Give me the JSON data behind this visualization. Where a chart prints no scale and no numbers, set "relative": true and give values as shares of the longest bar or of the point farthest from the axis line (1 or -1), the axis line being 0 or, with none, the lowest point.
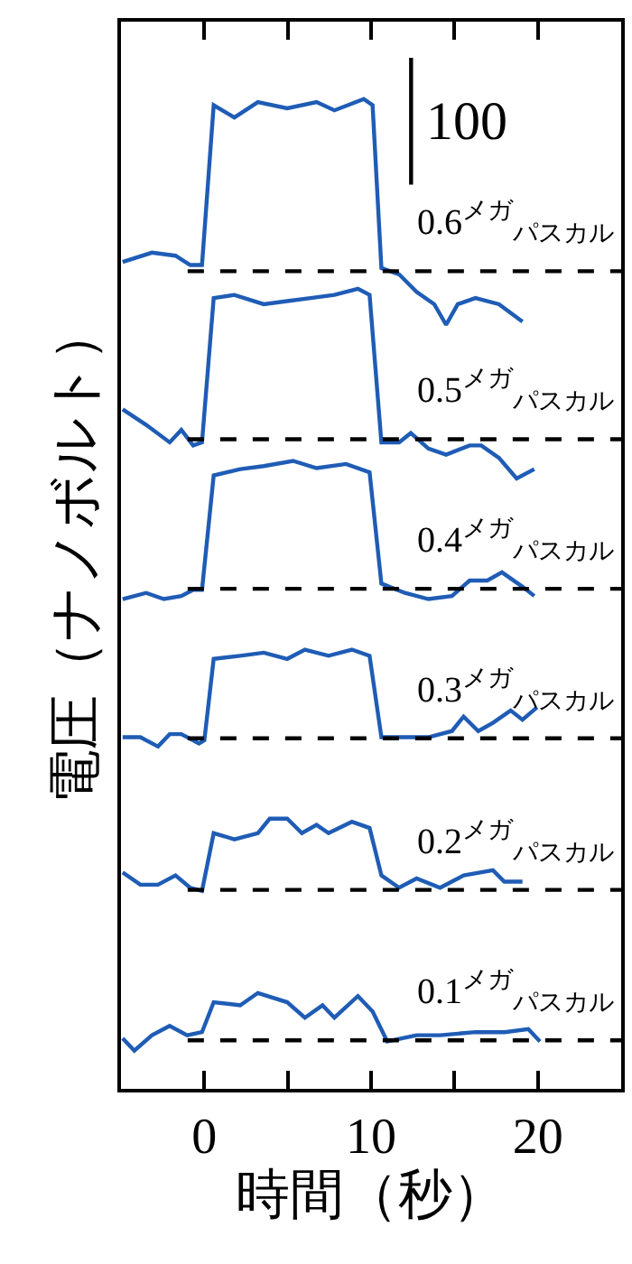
{
  "chart_data": {
    "type": "line",
    "relative": true,
    "xlabel": "時間（秒）",
    "ylabel": "電圧（ナノボルト）",
    "xlim": [
      -5,
      25
    ],
    "xticks": [
      0,
      {
        "value": 5,
        "label": null
      },
      10,
      {
        "value": 15,
        "label": null
      },
      20
    ],
    "legend": "top right",
    "marker": "none",
    "line_style": "solid",
    "series": [
      {
        "color": "#1f5cb5",
        "x": [
          -4.9,
          -3.14,
          -1.73,
          -0.85,
          -0.14,
          0.56,
          1.8,
          3.21,
          4.97,
          6.73,
          7.8,
          9.56,
          10.09,
          10.62,
          11.68,
          12.73,
          13.79,
          14.5,
          15.2,
          16.26,
          17.67,
          19.08
        ],
        "values": [
          0.802,
          0.811,
          0.808,
          0.799,
          0.799,
          0.954,
          0.942,
          0.957,
          0.951,
          0.957,
          0.949,
          0.96,
          0.954,
          0.796,
          0.79,
          0.773,
          0.761,
          0.741,
          0.761,
          0.767,
          0.761,
          0.744
        ]
      },
      {
        "color": "#1f5cb5",
        "x": [
          -4.9,
          -3.49,
          -2.08,
          -1.38,
          -0.67,
          -0.14,
          0.56,
          1.8,
          3.56,
          4.97,
          6.38,
          7.8,
          9.21,
          9.91,
          10.62,
          11.68,
          12.38,
          13.44,
          14.5,
          15.91,
          16.61,
          17.67,
          18.73,
          19.79
        ],
        "values": [
          0.659,
          0.644,
          0.627,
          0.639,
          0.624,
          0.627,
          0.767,
          0.77,
          0.761,
          0.764,
          0.767,
          0.77,
          0.776,
          0.77,
          0.627,
          0.627,
          0.636,
          0.621,
          0.615,
          0.624,
          0.624,
          0.612,
          0.592,
          0.601
        ]
      },
      {
        "color": "#1f5cb5",
        "x": [
          -4.9,
          -3.49,
          -2.43,
          -1.38,
          -0.67,
          -0.14,
          0.56,
          2.15,
          3.56,
          5.32,
          6.73,
          8.5,
          9.91,
          10.62,
          12.03,
          13.44,
          14.85,
          15.91,
          16.97,
          17.85,
          19.08,
          19.79
        ],
        "values": [
          0.475,
          0.481,
          0.475,
          0.478,
          0.484,
          0.484,
          0.595,
          0.601,
          0.604,
          0.609,
          0.602,
          0.606,
          0.598,
          0.49,
          0.481,
          0.475,
          0.478,
          0.493,
          0.493,
          0.501,
          0.487,
          0.478
        ]
      },
      {
        "color": "#1f5cb5",
        "x": [
          -4.9,
          -3.84,
          -2.78,
          -2.08,
          -1.38,
          -0.32,
          0.0,
          0.56,
          2.15,
          3.56,
          4.97,
          6.03,
          7.45,
          8.85,
          9.91,
          10.62,
          12.03,
          13.44,
          14.85,
          15.55,
          16.43,
          17.31,
          18.37,
          19.08,
          19.96
        ],
        "values": [
          0.341,
          0.341,
          0.332,
          0.344,
          0.344,
          0.335,
          0.338,
          0.417,
          0.42,
          0.423,
          0.417,
          0.426,
          0.42,
          0.426,
          0.42,
          0.341,
          0.341,
          0.341,
          0.347,
          0.361,
          0.347,
          0.355,
          0.367,
          0.358,
          0.37
        ]
      },
      {
        "color": "#1f5cb5",
        "x": [
          -4.9,
          -3.84,
          -2.78,
          -1.73,
          -0.85,
          -0.14,
          0.56,
          1.8,
          3.21,
          3.92,
          4.97,
          5.85,
          6.73,
          7.45,
          8.85,
          9.91,
          10.62,
          11.68,
          12.73,
          14.14,
          15.55,
          17.31,
          17.99,
          19.08
        ],
        "values": [
          0.21,
          0.198,
          0.198,
          0.207,
          0.195,
          0.192,
          0.248,
          0.242,
          0.248,
          0.262,
          0.262,
          0.248,
          0.256,
          0.248,
          0.259,
          0.253,
          0.207,
          0.195,
          0.204,
          0.195,
          0.207,
          0.212,
          0.201,
          0.201
        ]
      },
      {
        "color": "#1f5cb5",
        "x": [
          -4.9,
          -4.2,
          -3.14,
          -2.08,
          -1.03,
          -0.14,
          0.56,
          2.15,
          3.21,
          4.97,
          6.03,
          7.09,
          7.8,
          9.21,
          10.09,
          10.97,
          12.73,
          14.14,
          16.26,
          18.02,
          19.43,
          20.13
        ],
        "values": [
          0.049,
          0.037,
          0.052,
          0.061,
          0.052,
          0.055,
          0.084,
          0.081,
          0.093,
          0.084,
          0.069,
          0.081,
          0.069,
          0.09,
          0.075,
          0.046,
          0.052,
          0.052,
          0.055,
          0.055,
          0.058,
          0.046
        ]
      },
      {
        "color": "#000000",
        "line_style": "dashed",
        "x": [
          -1,
          25
        ],
        "values": [
          0.793,
          0.793
        ],
        "name": "0.6$^{メガ}$$_{パスカル}$"
      },
      {
        "color": "#000000",
        "line_style": "dashed",
        "x": [
          -1,
          25
        ],
        "values": [
          0.63,
          0.63
        ],
        "name": "0.5$^{メガ}$$_{パスカル}$"
      },
      {
        "color": "#000000",
        "line_style": "dashed",
        "x": [
          -1,
          25
        ],
        "values": [
          0.485,
          0.485
        ],
        "name": "0.4$^{メガ}$$_{パスカル}$"
      },
      {
        "color": "#000000",
        "line_style": "dashed",
        "x": [
          -1,
          25
        ],
        "values": [
          0.34,
          0.34
        ],
        "name": "0.3$^{メガ}$$_{パスカル}$"
      },
      {
        "color": "#000000",
        "line_style": "dashed",
        "x": [
          -1,
          25
        ],
        "values": [
          0.193,
          0.193
        ],
        "name": "0.2$^{メガ}$$_{パスカル}$"
      },
      {
        "color": "#000000",
        "line_style": "dashed",
        "x": [
          -1,
          25
        ],
        "values": [
          0.047,
          0.047
        ],
        "name": "0.1$^{メガ}$$_{パスカル}$"
      },
      {
        "color": "#000000",
        "x": [
          12.4,
          12.4
        ],
        "values": [
          0.877,
          1.0
        ],
        "name": "100"
      }
    ]
  }
}
